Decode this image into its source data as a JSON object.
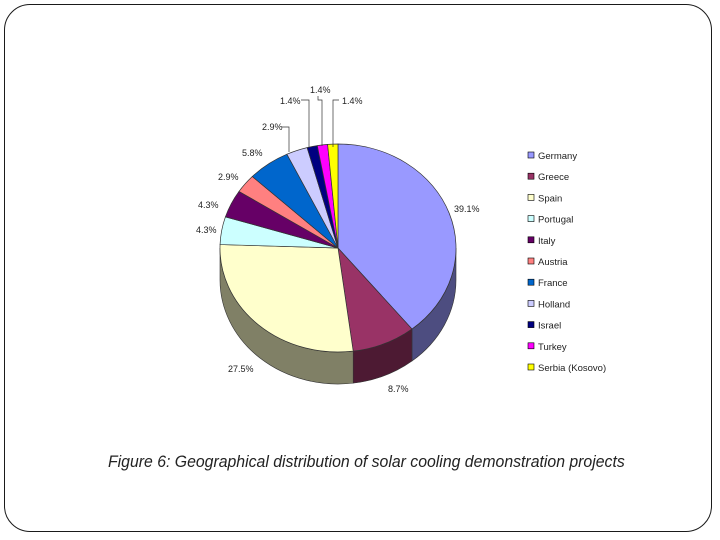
{
  "caption": "Figure 6: Geographical distribution of solar cooling demonstration projects",
  "chart_data": {
    "type": "pie",
    "style": "3d",
    "title": "",
    "legend_position": "right",
    "categories": [
      "Germany",
      "Greece",
      "Spain",
      "Portugal",
      "Italy",
      "Austria",
      "France",
      "Holland",
      "Israel",
      "Turkey",
      "Serbia (Kosovo)"
    ],
    "values": [
      39.1,
      8.7,
      27.5,
      4.3,
      4.3,
      2.9,
      5.8,
      2.9,
      1.4,
      1.4,
      1.4
    ],
    "data_labels": [
      "39.1%",
      "8.7%",
      "27.5%",
      "4.3%",
      "4.3%",
      "2.9%",
      "5.8%",
      "2.9%",
      "1.4%",
      "1.4%",
      "1.4%"
    ],
    "colors": [
      "#9999ff",
      "#993366",
      "#ffffcc",
      "#ccffff",
      "#660066",
      "#ff8080",
      "#0066cc",
      "#ccccff",
      "#000080",
      "#ff00ff",
      "#ffff00"
    ]
  }
}
